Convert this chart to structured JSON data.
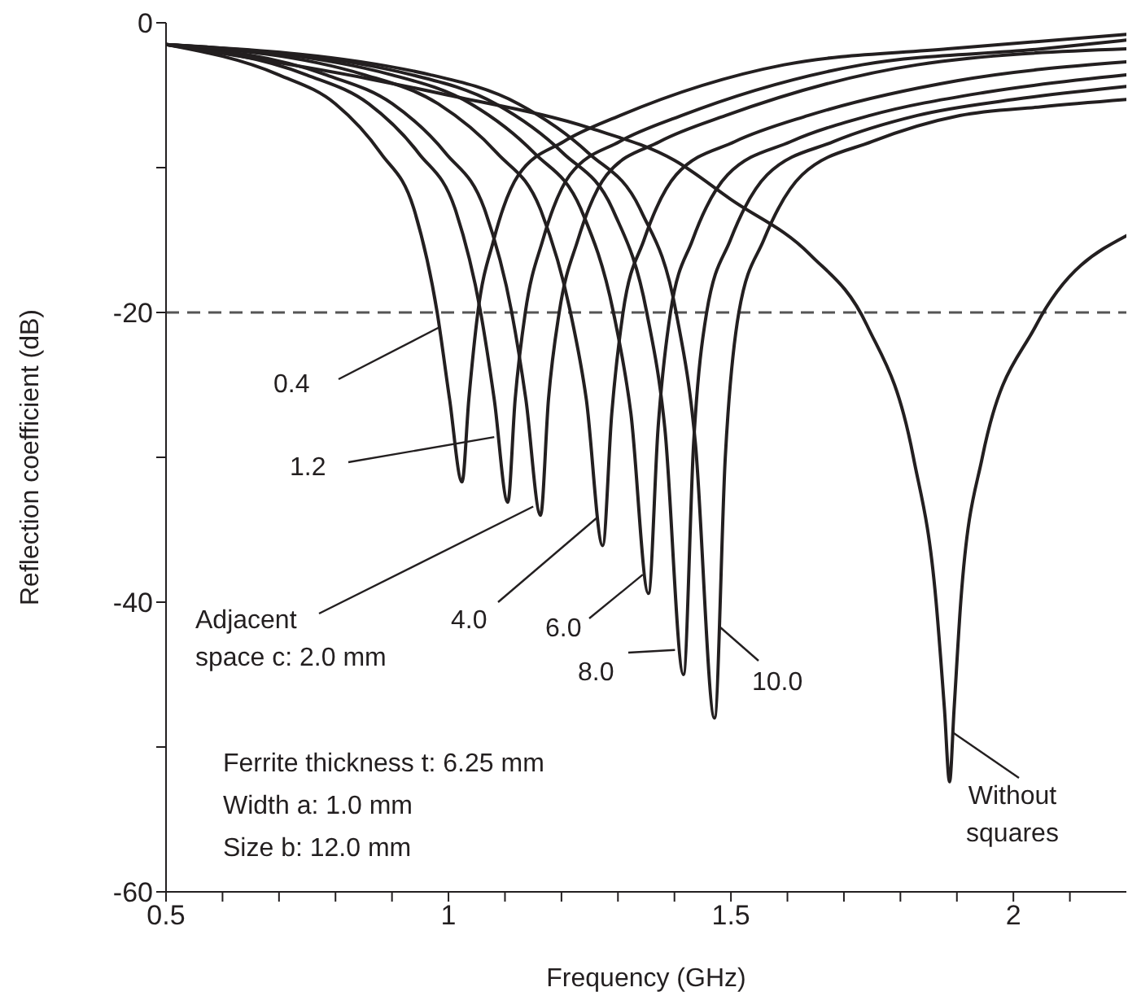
{
  "chart_data": {
    "type": "line",
    "xlabel": "Frequency (GHz)",
    "ylabel": "Reflection coefficient (dB)",
    "xlim": [
      0.5,
      2.2
    ],
    "ylim": [
      -60,
      0
    ],
    "xticks": [
      0.5,
      {
        "value": 0.6,
        "label": null
      },
      {
        "value": 0.7,
        "label": null
      },
      {
        "value": 0.8,
        "label": null
      },
      {
        "value": 0.9,
        "label": null
      },
      1,
      {
        "value": 1.1,
        "label": null
      },
      {
        "value": 1.2,
        "label": null
      },
      {
        "value": 1.3,
        "label": null
      },
      {
        "value": 1.4,
        "label": null
      },
      1.5,
      {
        "value": 1.6,
        "label": null
      },
      {
        "value": 1.7,
        "label": null
      },
      {
        "value": 1.8,
        "label": null
      },
      {
        "value": 1.9,
        "label": null
      },
      2,
      {
        "value": 2.1,
        "label": null
      }
    ],
    "yticks": [
      -60,
      {
        "value": -50,
        "label": null
      },
      -40,
      {
        "value": -30,
        "label": null
      },
      -20,
      {
        "value": -10,
        "label": null
      },
      0
    ],
    "grid": false,
    "legend": false,
    "marker": "none",
    "line_style": "solid",
    "series": [
      {
        "color": "#231f20",
        "x": [
          0.5,
          0.7,
          0.8,
          0.88,
          0.94,
          0.98,
          1.002,
          1.024,
          1.036,
          1.052,
          1.08,
          1.124,
          1.204,
          1.304,
          1.594,
          1.884,
          2.2
        ],
        "values": [
          -1.5,
          -3.6,
          -5.6,
          -9,
          -13,
          -20,
          -26,
          -31.7,
          -26,
          -20,
          -15,
          -10.5,
          -8.2,
          -6.4,
          -2.9,
          -1.8,
          -0.8
        ]
      },
      {
        "color": "#231f20",
        "x": [
          0.5,
          0.749,
          0.859,
          0.947,
          1.013,
          1.057,
          1.081,
          1.105,
          1.118,
          1.136,
          1.167,
          1.215,
          1.303,
          1.413,
          1.732,
          2.051,
          2.2
        ],
        "values": [
          -1.5,
          -3.6,
          -5.6,
          -9,
          -13,
          -20,
          -26,
          -33.1,
          -26,
          -20,
          -15,
          -10.5,
          -8.2,
          -6.4,
          -2.9,
          -1.8,
          -1.2
        ]
      },
      {
        "color": "#231f20",
        "x": [
          0.5,
          0.784,
          0.901,
          0.995,
          1.065,
          1.112,
          1.137,
          1.163,
          1.177,
          1.196,
          1.229,
          1.28,
          1.374,
          1.491,
          1.83,
          2.2
        ],
        "values": [
          -1.5,
          -3.6,
          -5.6,
          -9,
          -13,
          -20,
          -26,
          -34,
          -26,
          -20,
          -15,
          -10.5,
          -8.2,
          -6.4,
          -2.9,
          -1.8
        ]
      },
      {
        "color": "#231f20",
        "x": [
          0.5,
          0.852,
          0.982,
          1.086,
          1.164,
          1.216,
          1.244,
          1.273,
          1.289,
          1.309,
          1.346,
          1.403,
          1.507,
          1.637,
          1.9,
          2.2
        ],
        "values": [
          -1.5,
          -3.6,
          -5.6,
          -9,
          -13,
          -20,
          -26,
          -36.1,
          -27,
          -20,
          -15,
          -10.5,
          -8.2,
          -6.4,
          -4,
          -2.7
        ]
      },
      {
        "color": "#231f20",
        "x": [
          0.5,
          0.9,
          1.04,
          1.152,
          1.236,
          1.292,
          1.323,
          1.354,
          1.371,
          1.393,
          1.432,
          1.494,
          1.606,
          1.746,
          1.95,
          2.2
        ],
        "values": [
          -1.5,
          -3.6,
          -5.6,
          -9,
          -13,
          -20,
          -27,
          -39.4,
          -28,
          -20,
          -15,
          -10.5,
          -8.2,
          -6.4,
          -4.8,
          -3.6
        ]
      },
      {
        "color": "#231f20",
        "x": [
          0.5,
          0.936,
          1.084,
          1.203,
          1.292,
          1.351,
          1.383,
          1.416,
          1.434,
          1.457,
          1.499,
          1.564,
          1.682,
          1.83,
          2.0,
          2.2
        ],
        "values": [
          -1.5,
          -3.6,
          -5.6,
          -9,
          -13,
          -20,
          -28,
          -45,
          -29,
          -20,
          -15,
          -10.5,
          -8.2,
          -6.4,
          -5.3,
          -4.4
        ]
      },
      {
        "color": "#231f20",
        "x": [
          0.5,
          0.969,
          1.124,
          1.248,
          1.341,
          1.403,
          1.437,
          1.471,
          1.49,
          1.514,
          1.558,
          1.626,
          1.75,
          1.905,
          2.05,
          2.2
        ],
        "values": [
          -1.5,
          -3.6,
          -5.6,
          -9,
          -13,
          -20,
          -29,
          -48,
          -30,
          -20,
          -15,
          -10.5,
          -8.2,
          -6.4,
          -5.8,
          -5.3
        ]
      },
      {
        "color": "#231f20",
        "x": [
          0.5,
          0.863,
          1.0,
          1.253,
          1.4,
          1.5,
          1.64,
          1.741,
          1.823,
          1.863,
          1.878,
          1.887,
          1.895,
          1.907,
          1.945,
          2.04,
          2.2
        ],
        "values": [
          -1.5,
          -3.9,
          -5,
          -7.3,
          -9.5,
          -12.2,
          -16,
          -20.9,
          -30,
          -39.9,
          -47.4,
          -52.4,
          -47.4,
          -39.9,
          -30,
          -20.9,
          -14.7
        ]
      }
    ],
    "ref_lines": [
      {
        "axis": "y",
        "value": -20,
        "color": "#555555",
        "line_style": "dashed"
      }
    ],
    "annotations": [
      {
        "text": "0.4",
        "x": 0.985,
        "y": -21
      },
      {
        "text": "1.2",
        "x": 1.081,
        "y": -28.6
      },
      {
        "text": "Adjacent\nspace c: 2.0 mm",
        "x": 1.15,
        "y": -33.4
      },
      {
        "text": "4.0",
        "x": 1.262,
        "y": -34.2
      },
      {
        "text": "6.0",
        "x": 1.344,
        "y": -38.1
      },
      {
        "text": "8.0",
        "x": 1.401,
        "y": -43.3
      },
      {
        "text": "10.0",
        "x": 1.48,
        "y": -41.7
      },
      {
        "text": "Without\nsquares",
        "x": 1.893,
        "y": -49
      },
      "Ferrite thickness t: 6.25 mm",
      "Width a: 1.0 mm",
      "Size b: 12.0 mm"
    ]
  }
}
